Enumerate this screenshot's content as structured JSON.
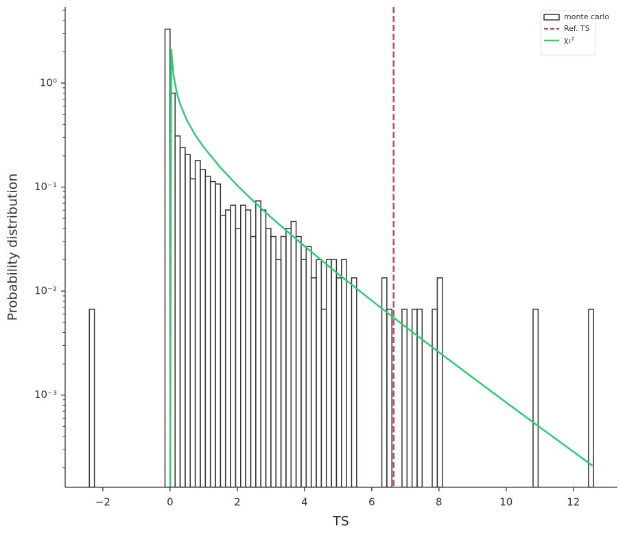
{
  "chart_data": {
    "type": "histogram",
    "xlabel": "TS",
    "ylabel": "Probability distribution",
    "name": "monte carlo",
    "color": "#333333",
    "bins": [
      -2.4,
      -2.25,
      -2.1,
      -1.95,
      -1.8,
      -1.65,
      -1.5,
      -1.35,
      -1.2,
      -1.05,
      -0.9,
      -0.75,
      -0.6,
      -0.45,
      -0.3,
      -0.15,
      0,
      0.15,
      0.3,
      0.45,
      0.6,
      0.75,
      0.9,
      1.05,
      1.2,
      1.35,
      1.5,
      1.65,
      1.8,
      1.95,
      2.1,
      2.25,
      2.4,
      2.55,
      2.7,
      2.85,
      3,
      3.15,
      3.3,
      3.45,
      3.6,
      3.75,
      3.9,
      4.05,
      4.2,
      4.35,
      4.5,
      4.65,
      4.8,
      4.95,
      5.1,
      5.25,
      5.4,
      5.55,
      5.7,
      5.85,
      6,
      6.15,
      6.3,
      6.45,
      6.6,
      6.75,
      6.9,
      7.05,
      7.2,
      7.35,
      7.5,
      7.65,
      7.8,
      7.95,
      8.1,
      8.25,
      8.4,
      8.55,
      8.7,
      8.85,
      9,
      9.15,
      9.3,
      9.45,
      9.6,
      9.75,
      9.9,
      10.05,
      10.2,
      10.35,
      10.5,
      10.65,
      10.8,
      10.95,
      11.1,
      11.25,
      11.4,
      11.55,
      11.7,
      11.85,
      12,
      12.15,
      12.3,
      12.45,
      12.6
    ],
    "values": [
      0.0067,
      0,
      0,
      0,
      0,
      0,
      0,
      0,
      0,
      0,
      0,
      0,
      0,
      0,
      0,
      3.3,
      0.8,
      0.31,
      0.24,
      0.205,
      0.12,
      0.18,
      0.147,
      0.127,
      0.113,
      0.107,
      0.0535,
      0.0602,
      0.0669,
      0.0401,
      0.0669,
      0.0602,
      0.0335,
      0.0736,
      0.0602,
      0.0401,
      0.0335,
      0.0201,
      0.0335,
      0.0401,
      0.0468,
      0.0335,
      0.0201,
      0.0268,
      0.0134,
      0.0201,
      0.0067,
      0.0201,
      0.0201,
      0.0134,
      0.0201,
      0,
      0.0134,
      0,
      0,
      0,
      0,
      0,
      0.0134,
      0.0067,
      0,
      0,
      0.0067,
      0,
      0.0067,
      0.0067,
      0,
      0,
      0.0067,
      0.0134,
      0,
      0,
      0,
      0,
      0,
      0,
      0,
      0,
      0,
      0,
      0,
      0,
      0,
      0,
      0,
      0,
      0,
      0,
      0.0067,
      0,
      0,
      0,
      0,
      0,
      0,
      0,
      0,
      0,
      0,
      0.0067
    ],
    "vlines": [
      {
        "name": "Ref. TS",
        "x": 6.65,
        "color": "#c44e52",
        "style": "dashed"
      }
    ],
    "curves": [
      {
        "name": "χ₁²",
        "color": "#2ecc71",
        "x": [
          0,
          0.034,
          0.1,
          0.2,
          0.3,
          0.5,
          0.75,
          1,
          1.5,
          2,
          2.5,
          3,
          4,
          5,
          6,
          7,
          8,
          9,
          10,
          11,
          12,
          12.57
        ],
        "values": [
          0,
          2.127,
          1.2,
          0.8071,
          0.6269,
          0.4394,
          0.3166,
          0.242,
          0.1539,
          0.1038,
          0.07228,
          0.05139,
          0.027,
          0.01465,
          0.008109,
          0.004553,
          0.002584,
          0.001477,
          0.00085,
          0.0004916,
          0.0002855,
          0.0002096
        ]
      }
    ],
    "xlim": [
      -3.12,
      13.31
    ],
    "ylim": [
      0.00013,
      5.4
    ],
    "yscale": "log",
    "xticks": [
      {
        "value": -2,
        "label": "−2"
      },
      0,
      2,
      4,
      6,
      8,
      10,
      12
    ],
    "yticks": [
      {
        "value": 0.001,
        "label": "10⁻³"
      },
      {
        "value": 0.01,
        "label": "10⁻²"
      },
      {
        "value": 0.1,
        "label": "10⁻¹"
      },
      {
        "value": 1,
        "label": "10⁰"
      }
    ],
    "yminorticks": [
      0.0002,
      0.0003,
      0.0004,
      0.0005,
      0.0006,
      0.0007,
      0.0008,
      0.0009,
      0.002,
      0.003,
      0.004,
      0.005,
      0.006,
      0.007,
      0.008,
      0.009,
      0.02,
      0.03,
      0.04,
      0.05,
      0.06,
      0.07,
      0.08,
      0.09,
      0.2,
      0.3,
      0.4,
      0.5,
      0.6,
      0.7,
      0.8,
      0.9,
      2,
      3,
      4,
      5
    ],
    "legend": "upper right"
  }
}
